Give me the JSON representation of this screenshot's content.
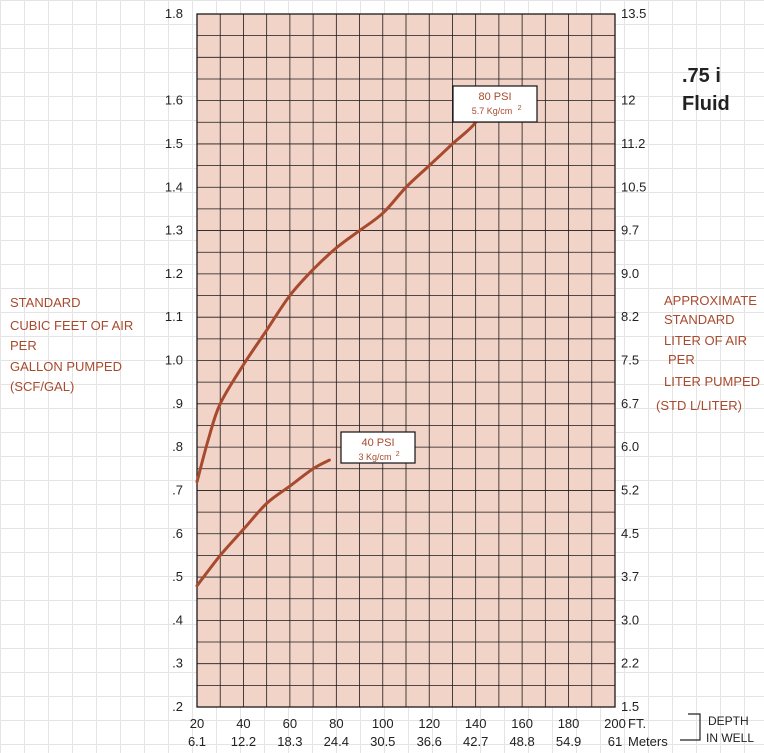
{
  "title_lines": [
    ".75 i",
    "Fluid"
  ],
  "left_label_lines": [
    "STANDARD",
    "CUBIC FEET OF AIR",
    "PER",
    "GALLON PUMPED",
    "(SCF/GAL)"
  ],
  "right_label_lines": [
    "APPROXIMATE",
    "STANDARD",
    "LITER OF AIR",
    "PER",
    "LITER PUMPED",
    "(STD L/LITER)"
  ],
  "x_unit_ft": "FT.",
  "x_unit_m": "Meters",
  "depth_label_lines": [
    "DEPTH",
    "IN WELL"
  ],
  "colors": {
    "curve": "#a84a2e",
    "plot_bg": "#f2d3c8",
    "grid": "#1a1a1a",
    "text_accent": "#a84a2e"
  },
  "chart_data": {
    "type": "line",
    "x_label_ft": "FT.",
    "x_label_m": "Meters",
    "xlim": [
      20,
      200
    ],
    "ylim": [
      0.2,
      1.8
    ],
    "x_ticks_ft": [
      "20",
      "40",
      "60",
      "80",
      "100",
      "120",
      "140",
      "160",
      "180",
      "200"
    ],
    "x_ticks_m": [
      "6.1",
      "12.2",
      "18.3",
      "24.4",
      "30.5",
      "36.6",
      "42.7",
      "48.8",
      "54.9",
      "61"
    ],
    "y_ticks_left": [
      "1.8",
      "1.6",
      "1.5",
      "1.4",
      "1.3",
      "1.2",
      "1.1",
      "1.0",
      ".9",
      ".8",
      ".7",
      ".6",
      ".5",
      ".4",
      ".3",
      ".2"
    ],
    "y_ticks_right": [
      "13.5",
      "12",
      "11.2",
      "10.5",
      "9.7",
      "9.0",
      "8.2",
      "7.5",
      "6.7",
      "6.0",
      "5.2",
      "4.5",
      "3.7",
      "3.0",
      "2.2",
      "1.5"
    ],
    "grid": true,
    "series": [
      {
        "name": "80 PSI",
        "sub": "5.7 Kg/cm",
        "sup": "2",
        "x": [
          20,
          25,
          30,
          40,
          50,
          60,
          70,
          80,
          90,
          100,
          110,
          120,
          130,
          140,
          143
        ],
        "y": [
          0.72,
          0.82,
          0.9,
          0.99,
          1.07,
          1.15,
          1.21,
          1.26,
          1.3,
          1.34,
          1.4,
          1.45,
          1.5,
          1.55,
          1.6
        ]
      },
      {
        "name": "40 PSI",
        "sub": "3 Kg/cm",
        "sup": "2",
        "x": [
          20,
          30,
          40,
          50,
          60,
          70,
          77
        ],
        "y": [
          0.48,
          0.55,
          0.61,
          0.67,
          0.71,
          0.75,
          0.77
        ]
      }
    ]
  }
}
